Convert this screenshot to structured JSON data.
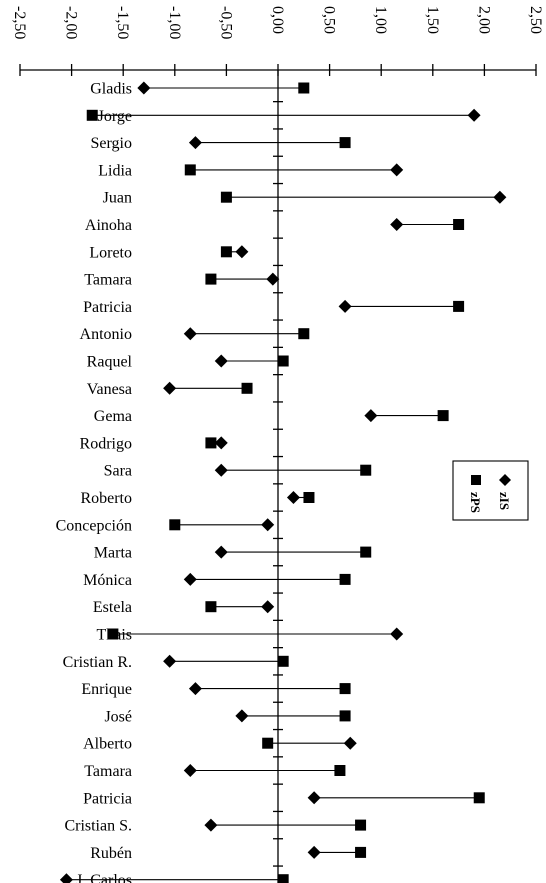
{
  "chart_data": {
    "type": "scatter",
    "orientation": "horizontal",
    "xlim": [
      -2.5,
      2.5
    ],
    "x_ticks": [
      "-2,50",
      "-2,00",
      "-1,50",
      "-1,00",
      "-0,50",
      "0,00",
      "0,50",
      "1,00",
      "1,50",
      "2,00",
      "2,50"
    ],
    "x_tick_values": [
      -2.5,
      -2.0,
      -1.5,
      -1.0,
      -0.5,
      0.0,
      0.5,
      1.0,
      1.5,
      2.0,
      2.5
    ],
    "categories": [
      "Gladis",
      "Jorge",
      "Sergio",
      "Lidia",
      "Juan",
      "Ainoha",
      "Loreto",
      "Tamara",
      "Patricia",
      "Antonio",
      "Raquel",
      "Vanesa",
      "Gema",
      "Rodrigo",
      "Sara",
      "Roberto",
      "Concepción",
      "Marta",
      "Mónica",
      "Estela",
      "Thais",
      "Cristian R.",
      "Enrique",
      "José",
      "Alberto",
      "Tamara",
      "Patricia",
      "Cristian S.",
      "Rubén",
      "J. Carlos"
    ],
    "series": [
      {
        "name": "zIS",
        "marker": "diamond",
        "values": [
          -1.3,
          1.9,
          -0.8,
          1.15,
          2.15,
          1.15,
          -0.35,
          -0.05,
          0.65,
          -0.85,
          -0.55,
          -1.05,
          0.9,
          -0.55,
          -0.55,
          0.15,
          -0.1,
          -0.55,
          -0.85,
          -0.1,
          1.15,
          -1.05,
          -0.8,
          -0.35,
          0.7,
          -0.85,
          0.35,
          -0.65,
          0.35,
          -2.05
        ]
      },
      {
        "name": "zPS",
        "marker": "square",
        "values": [
          0.25,
          -1.8,
          0.65,
          -0.85,
          -0.5,
          1.75,
          -0.5,
          -0.65,
          1.75,
          0.25,
          0.05,
          -0.3,
          1.6,
          -0.65,
          0.85,
          0.3,
          -1.0,
          0.85,
          0.65,
          -0.65,
          -1.6,
          0.05,
          0.65,
          0.65,
          -0.1,
          0.6,
          1.95,
          0.8,
          0.8,
          0.05
        ]
      }
    ],
    "legend": {
      "position": "right",
      "orientation": "rotated"
    },
    "grid": false
  }
}
